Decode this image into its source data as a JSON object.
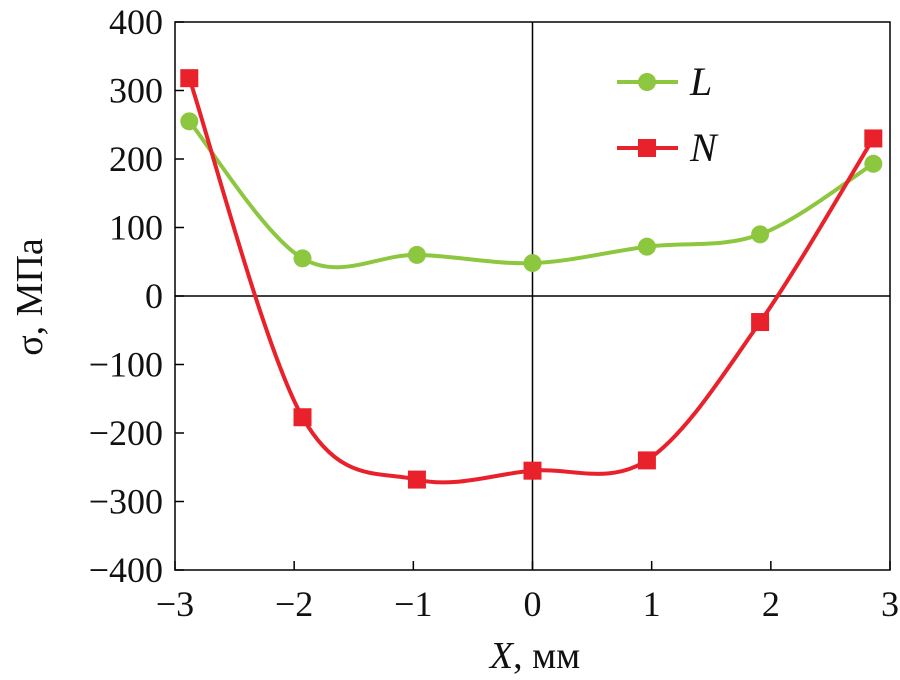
{
  "chart_data": {
    "type": "line",
    "xlabel_var": "X",
    "xlabel_unit": ", мм",
    "ylabel": "σ, МПа",
    "xlim": [
      -3,
      3
    ],
    "ylim": [
      -400,
      400
    ],
    "xticks": [
      -3,
      -2,
      -1,
      0,
      1,
      2,
      3
    ],
    "yticks": [
      400,
      300,
      200,
      100,
      0,
      -100,
      -200,
      -300,
      -400
    ],
    "xtick_labels": [
      "−3",
      "−2",
      "−1",
      "0",
      "1",
      "2",
      "3"
    ],
    "ytick_labels": [
      "400",
      "300",
      "200",
      "100",
      "0",
      "−100",
      "−200",
      "−300",
      "−400"
    ],
    "grid": false,
    "zero_lines": true,
    "legend_position": "top-right",
    "series": [
      {
        "name": "L",
        "marker": "circle",
        "color": "#8dc63f",
        "x": [
          -2.88,
          -1.93,
          -0.97,
          0.0,
          0.96,
          1.91,
          2.86
        ],
        "y": [
          255,
          55,
          60,
          48,
          72,
          90,
          193
        ]
      },
      {
        "name": "N",
        "marker": "square",
        "color": "#e8212b",
        "x": [
          -2.88,
          -1.93,
          -0.97,
          0.0,
          0.96,
          1.91,
          2.86
        ],
        "y": [
          318,
          -177,
          -268,
          -255,
          -240,
          -38,
          230
        ]
      }
    ]
  }
}
